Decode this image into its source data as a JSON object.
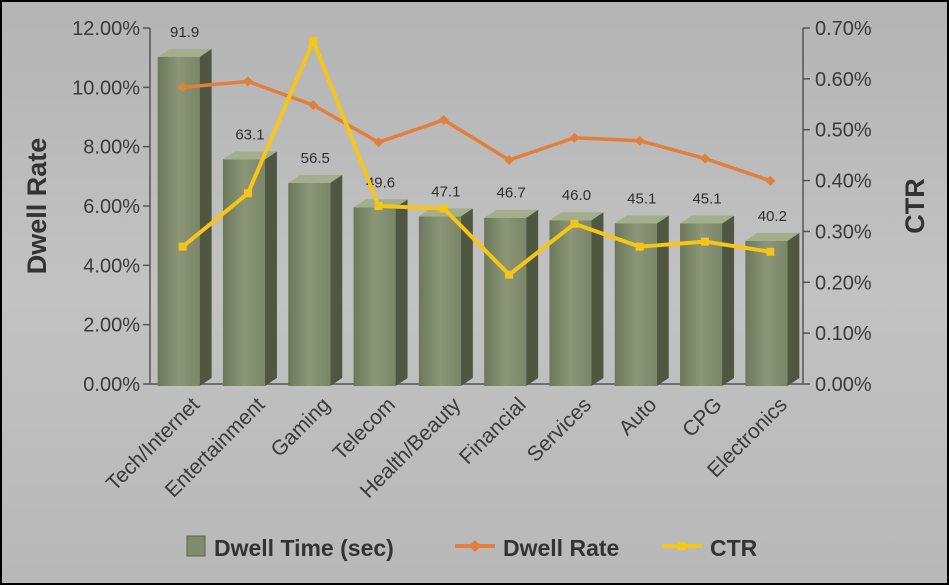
{
  "chart_data": {
    "type": "bar",
    "categories": [
      "Tech/Internet",
      "Entertainment",
      "Gaming",
      "Telecom",
      "Health/Beauty",
      "Financial",
      "Services",
      "Auto",
      "CPG",
      "Electronics"
    ],
    "series": [
      {
        "name": "Dwell Time (sec)",
        "type": "bar",
        "values": [
          91.9,
          63.1,
          56.5,
          49.6,
          47.1,
          46.7,
          46.0,
          45.1,
          45.1,
          40.2
        ],
        "color": "#7f8b6b"
      },
      {
        "name": "Dwell Rate",
        "type": "line",
        "axis": "left",
        "values": [
          10.0,
          10.2,
          9.4,
          8.15,
          8.9,
          7.55,
          8.3,
          8.2,
          7.6,
          6.85
        ],
        "color": "#e0803a"
      },
      {
        "name": "CTR",
        "type": "line",
        "axis": "right",
        "values": [
          0.27,
          0.375,
          0.675,
          0.35,
          0.345,
          0.215,
          0.315,
          0.27,
          0.28,
          0.26
        ],
        "color": "#f5c518"
      }
    ],
    "data_labels": [
      "91.9",
      "63.1",
      "56.5",
      "49.6",
      "47.1",
      "46.7",
      "46.0",
      "45.1",
      "45.1",
      "40.2"
    ],
    "ylabel": "Dwell Rate",
    "y2label": "CTR",
    "ylim": [
      0,
      12
    ],
    "y2lim": [
      0,
      0.7
    ],
    "yticks": [
      "0.00%",
      "2.00%",
      "4.00%",
      "6.00%",
      "8.00%",
      "10.00%",
      "12.00%"
    ],
    "y2ticks": [
      "0.00%",
      "0.10%",
      "0.20%",
      "0.30%",
      "0.40%",
      "0.50%",
      "0.60%",
      "0.70%"
    ],
    "legend": [
      "Dwell Time (sec)",
      "Dwell Rate",
      "CTR"
    ],
    "legend_position": "bottom",
    "grid": false,
    "background": "#b8b8b8"
  }
}
